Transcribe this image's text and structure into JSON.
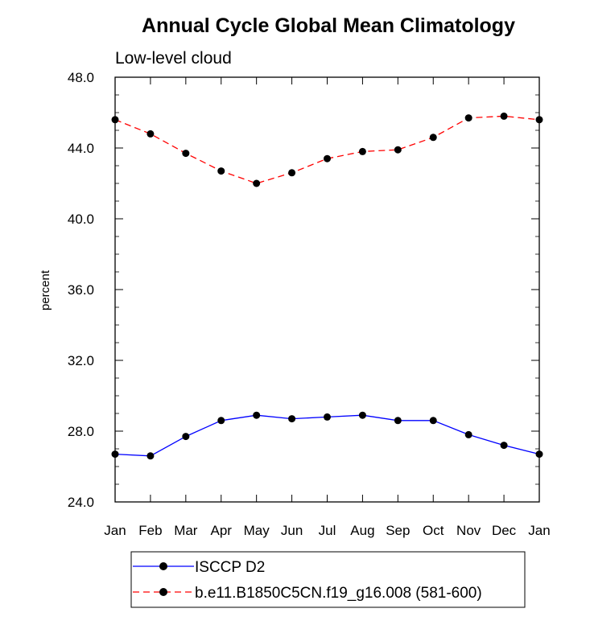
{
  "chart_data": {
    "type": "line",
    "title": "Annual Cycle Global Mean Climatology",
    "subtitle": "Low-level cloud",
    "xlabel": "",
    "ylabel": "percent",
    "categories": [
      "Jan",
      "Feb",
      "Mar",
      "Apr",
      "May",
      "Jun",
      "Jul",
      "Aug",
      "Sep",
      "Oct",
      "Nov",
      "Dec",
      "Jan"
    ],
    "ylim": [
      24.0,
      48.0
    ],
    "yticks": [
      "24.0",
      "28.0",
      "32.0",
      "36.0",
      "40.0",
      "44.0",
      "48.0"
    ],
    "y_minor_step": 1.0,
    "grid": false,
    "legend_position": "bottom",
    "series": [
      {
        "name": "ISCCP D2",
        "color": "#0000ff",
        "dashed": false,
        "marker": "filled-circle",
        "values": [
          26.7,
          26.6,
          27.7,
          28.6,
          28.9,
          28.7,
          28.8,
          28.9,
          28.6,
          28.6,
          27.8,
          27.2,
          26.7
        ]
      },
      {
        "name": "b.e11.B1850C5CN.f19_g16.008 (581-600)",
        "color": "#ff0000",
        "dashed": true,
        "marker": "filled-circle",
        "values": [
          45.6,
          44.8,
          43.7,
          42.7,
          42.0,
          42.6,
          43.4,
          43.8,
          43.9,
          44.6,
          45.7,
          45.8,
          45.6
        ]
      }
    ]
  }
}
